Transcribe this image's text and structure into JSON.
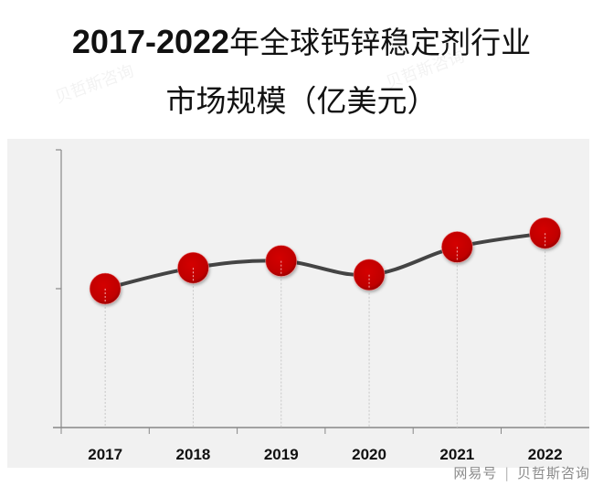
{
  "title": {
    "line1_years": "2017-2022",
    "line1_text": "年全球钙锌稳定剂行业",
    "line2": "市场规模（亿美元）"
  },
  "watermark": {
    "text": "贝哲斯咨询"
  },
  "footer": {
    "source": "网易号",
    "separator": "|",
    "brand": "贝哲斯咨询"
  },
  "colors": {
    "panel_bg": "#f1f1f1",
    "line": "#444444",
    "marker": "#c00000",
    "axis": "#888888"
  },
  "chart_data": {
    "type": "line",
    "title": "2017-2022年全球钙锌稳定剂行业市场规模（亿美元）",
    "xlabel": "",
    "ylabel": "",
    "categories": [
      "2017",
      "2018",
      "2019",
      "2020",
      "2021",
      "2022"
    ],
    "series": [
      {
        "name": "市场规模（亿美元）",
        "values": [
          1.0,
          1.15,
          1.2,
          1.1,
          1.3,
          1.4
        ]
      }
    ],
    "y_ticks_labeled": false,
    "y_tick_count": 3,
    "ylim_relative": [
      0,
      2
    ],
    "grid": false,
    "drop_lines": true,
    "marker": "circle",
    "smooth": true,
    "legend": "none",
    "note": "Y-axis has no tick labels; values are relative estimates from marker positions (middle y tick ≈ 1.0)."
  }
}
